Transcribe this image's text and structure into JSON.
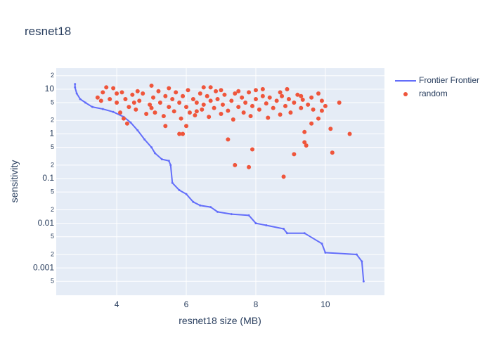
{
  "chart_data": {
    "type": "line+scatter",
    "title": "resnet18",
    "x_label": "resnet18 size (MB)",
    "y_label": "sensitivity",
    "xlim": [
      2.26,
      11.7
    ],
    "xticks": [
      4,
      6,
      8,
      10
    ],
    "ylim": [
      0.000245,
      29.5
    ],
    "log_y": true,
    "grid": true,
    "legend_position": "top-right",
    "yticks": [
      {
        "value": 20,
        "label": "2"
      },
      10,
      {
        "value": 5,
        "label": "5"
      },
      {
        "value": 2,
        "label": "2"
      },
      1,
      {
        "value": 0.5,
        "label": "5"
      },
      {
        "value": 0.2,
        "label": "2"
      },
      0.1,
      {
        "value": 0.05,
        "label": "5"
      },
      {
        "value": 0.02,
        "label": "2"
      },
      0.01,
      {
        "value": 0.005,
        "label": "5"
      },
      {
        "value": 0.002,
        "label": "2"
      },
      0.001,
      {
        "value": 0.0005,
        "label": "5"
      }
    ],
    "series": [
      {
        "name": "Frontier Frontier",
        "color": "#636efa",
        "mode": "lines",
        "x": [
          2.8,
          2.8,
          2.85,
          2.95,
          3.1,
          3.3,
          3.6,
          3.9,
          4.2,
          4.4,
          4.6,
          4.8,
          5.0,
          5.1,
          5.3,
          5.5,
          5.55,
          5.6,
          5.8,
          6.0,
          6.2,
          6.4,
          6.7,
          6.9,
          7.3,
          7.8,
          8.0,
          8.3,
          8.8,
          8.9,
          9.4,
          9.9,
          10.0,
          10.9,
          11.05,
          11.1
        ],
        "values": [
          13,
          11,
          8,
          6,
          5,
          4,
          3.6,
          3.1,
          2.4,
          1.8,
          1.2,
          0.75,
          0.5,
          0.37,
          0.27,
          0.25,
          0.2,
          0.08,
          0.055,
          0.045,
          0.03,
          0.025,
          0.023,
          0.018,
          0.016,
          0.015,
          0.01,
          0.009,
          0.0075,
          0.006,
          0.006,
          0.0035,
          0.0022,
          0.002,
          0.0014,
          0.0005
        ]
      },
      {
        "name": "random",
        "color": "#EF553B",
        "mode": "markers",
        "x": [
          3.45,
          3.6,
          3.7,
          3.9,
          4.1,
          4.2,
          4.3,
          4.5,
          5.0,
          5.4,
          5.8,
          5.9,
          6.0,
          7.2,
          7.4,
          7.8,
          7.9,
          8.8,
          9.1,
          9.4,
          9.4,
          9.45,
          10.2,
          10.15,
          10.7,
          9.6,
          10.4,
          10.0,
          9.9,
          9.8,
          9.3,
          9.8,
          8.7,
          8.9,
          8.2,
          7.5,
          6.5,
          5.5,
          4.6,
          4.0,
          4.25,
          4.35,
          4.45,
          4.55,
          4.65,
          4.75,
          4.85,
          4.95,
          5.05,
          5.1,
          5.2,
          5.25,
          5.35,
          5.4,
          5.5,
          5.6,
          5.65,
          5.7,
          5.8,
          5.85,
          5.9,
          6.0,
          6.05,
          6.1,
          6.2,
          6.25,
          6.3,
          6.4,
          6.45,
          6.5,
          6.6,
          6.65,
          6.7,
          6.8,
          6.85,
          6.9,
          7.0,
          7.05,
          7.1,
          7.2,
          7.3,
          7.35,
          7.4,
          7.5,
          7.6,
          7.65,
          7.7,
          7.8,
          7.85,
          7.9,
          8.0,
          8.1,
          8.2,
          8.3,
          8.35,
          8.4,
          8.5,
          8.6,
          8.7,
          8.75,
          8.85,
          8.95,
          9.0,
          9.1,
          9.2,
          9.3,
          9.35,
          9.5,
          9.6,
          9.65,
          4.0,
          3.8,
          4.15,
          3.55,
          5.0,
          6.3,
          7.0,
          6.7,
          8.0,
          9.9
        ],
        "values": [
          6.5,
          8.5,
          11,
          10.5,
          3,
          2.2,
          1.7,
          5,
          12,
          1.5,
          1,
          1,
          1.5,
          0.75,
          0.2,
          0.18,
          0.45,
          0.11,
          0.35,
          1.1,
          0.65,
          0.55,
          0.38,
          1.3,
          1,
          1.7,
          5,
          4.2,
          3.3,
          2.2,
          7,
          8,
          8.5,
          10,
          10,
          9,
          11,
          10.5,
          9,
          8,
          6,
          4,
          7.5,
          3.5,
          5.5,
          8,
          2.8,
          4.5,
          6.5,
          3,
          9,
          5,
          2.5,
          7,
          4,
          6,
          3.2,
          8.5,
          5,
          2.2,
          7,
          4,
          9.5,
          3,
          6,
          2.6,
          5,
          8,
          3.5,
          4.5,
          7,
          2.4,
          5.5,
          3.8,
          9,
          6,
          2.8,
          4.5,
          7.5,
          3.3,
          5.5,
          2.1,
          8,
          4,
          6.5,
          3,
          5,
          8.5,
          2.5,
          4.2,
          6,
          3.5,
          7,
          4.8,
          2.3,
          6.5,
          3.8,
          5.5,
          2.7,
          7,
          4.2,
          6,
          3,
          5,
          7.5,
          3.8,
          5.8,
          4.5,
          6.5,
          3.5,
          5,
          6,
          8.5,
          5.5,
          3.8,
          3.2,
          9.5,
          11,
          9.5,
          5.5
        ]
      }
    ]
  }
}
